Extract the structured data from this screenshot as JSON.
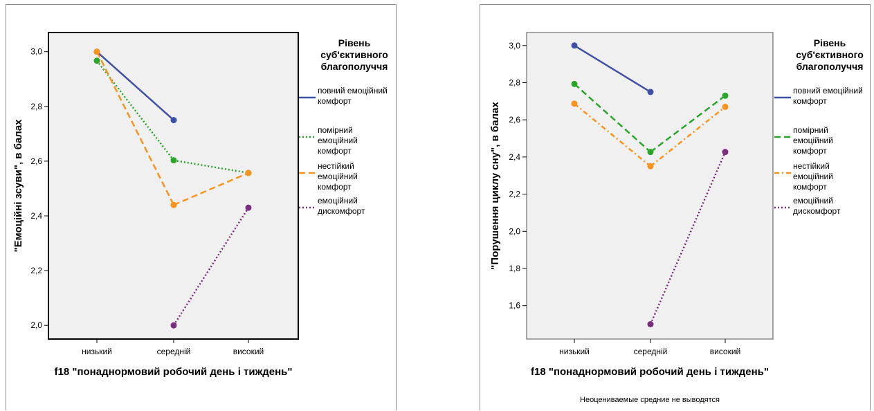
{
  "chart_data": [
    {
      "type": "line",
      "xlabel": "f18 \"понаднормовий робочий день і тиждень\"",
      "ylabel": "\"Емоційні зсуви\", в балах",
      "categories": [
        "низький",
        "середній",
        "високий"
      ],
      "yticks": [
        "2,0",
        "2,2",
        "2,4",
        "2,6",
        "2,8",
        "3,0"
      ],
      "ylim": [
        1.95,
        3.07
      ],
      "grid": false,
      "legend_position": "right",
      "legend_title": "Рівень суб'єктивного благополуччя",
      "series": [
        {
          "name": "повний емоційний комфорт",
          "values": [
            3.0,
            2.75,
            null
          ],
          "color": "#3f51a5",
          "dash": "solid"
        },
        {
          "name": "помірний емоційний комфорт",
          "values": [
            2.967,
            2.603,
            2.557
          ],
          "color": "#2aa52a",
          "dash": "dotted"
        },
        {
          "name": "нестійкий емоційний комфорт",
          "values": [
            3.0,
            2.44,
            2.557
          ],
          "color": "#f7941d",
          "dash": "dashed"
        },
        {
          "name": "емоційний дискомфорт",
          "values": [
            null,
            2.0,
            2.43
          ],
          "color": "#7b2d7f",
          "dash": "dotted"
        }
      ]
    },
    {
      "type": "line",
      "xlabel": "f18 \"понаднормовий робочий день і тиждень\"",
      "ylabel": "\"Порушення циклу сну\", в балах",
      "categories": [
        "низький",
        "середній",
        "високий"
      ],
      "yticks": [
        "1,6",
        "1,8",
        "2,0",
        "2,2",
        "2,4",
        "2,6",
        "2,8",
        "3,0"
      ],
      "ylim": [
        1.42,
        3.07
      ],
      "grid": false,
      "legend_position": "right",
      "legend_title": "Рівень суб'єктивного благополуччя",
      "footnote": "Неоцениваемые средние не выводятся",
      "series": [
        {
          "name": "повний емоційний комфорт",
          "values": [
            3.0,
            2.75,
            null
          ],
          "color": "#3f51a5",
          "dash": "solid"
        },
        {
          "name": "помірний емоційний комфорт",
          "values": [
            2.793,
            2.427,
            2.73
          ],
          "color": "#2aa52a",
          "dash": "dashed"
        },
        {
          "name": "нестійкий емоційний комфорт",
          "values": [
            2.687,
            2.35,
            2.67
          ],
          "color": "#f7941d",
          "dash": "dashdot"
        },
        {
          "name": "емоційний дискомфорт",
          "values": [
            null,
            1.5,
            2.427
          ],
          "color": "#7b2d7f",
          "dash": "dotted"
        }
      ]
    }
  ]
}
